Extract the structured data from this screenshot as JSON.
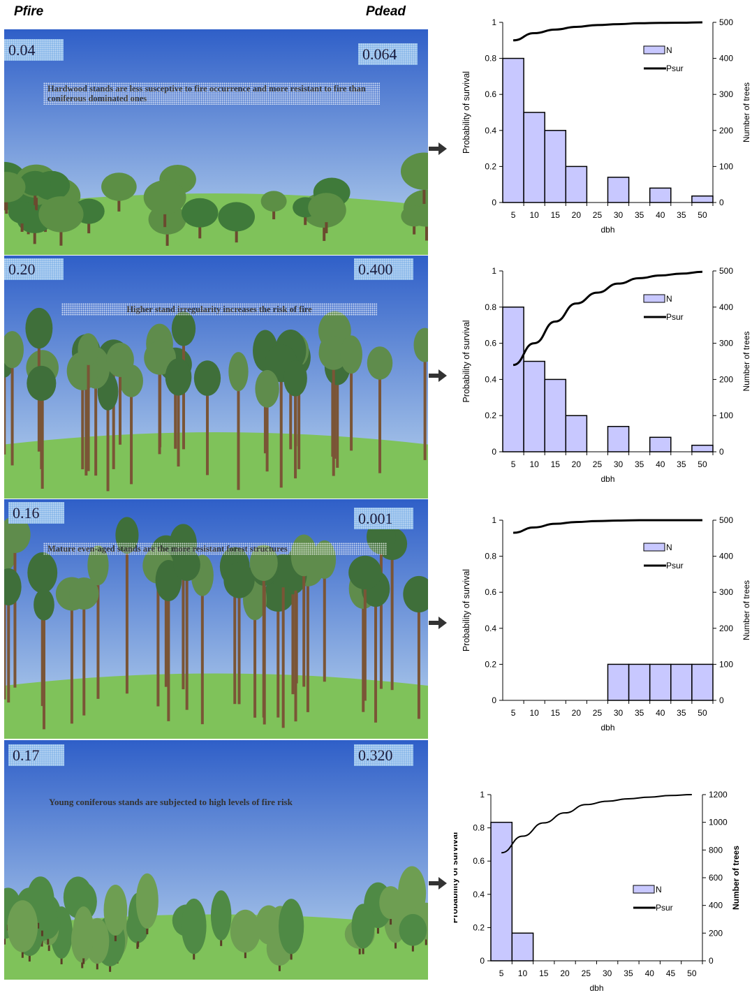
{
  "header": {
    "pfire_label": "Pfire",
    "pdead_label": "Pdead"
  },
  "colors": {
    "bar_fill": "#c8c8ff",
    "bar_stroke": "#000000",
    "sky_top": "#2f5fc8",
    "sky_bottom": "#bcd6ef",
    "grass": "#7fc25a"
  },
  "scenes": [
    {
      "pfire": "0.04",
      "pdead": "0.064",
      "note": "Hardwood stands are less susceptive to fire occurrence and more resistant to fire than coniferous dominated ones",
      "forest": "hardwood"
    },
    {
      "pfire": "0.20",
      "pdead": "0.400",
      "note": "Higher stand irregularity increases the risk of fire",
      "forest": "irregular-pine"
    },
    {
      "pfire": "0.16",
      "pdead": "0.001",
      "note": "Mature even-aged stands are the  more resistant forest structures",
      "forest": "mature-pine"
    },
    {
      "pfire": "0.17",
      "pdead": "0.320",
      "note": "Young coniferous stands are subjected to high levels of fire risk",
      "forest": "young-conifer"
    }
  ],
  "chart_data": [
    {
      "type": "bar",
      "categories": [
        "5",
        "10",
        "15",
        "20",
        "25",
        "30",
        "35",
        "40",
        "35",
        "50"
      ],
      "series": [
        {
          "name": "N",
          "type": "bar",
          "axis": "right",
          "values": [
            400,
            250,
            200,
            100,
            0,
            70,
            0,
            40,
            0,
            18
          ]
        },
        {
          "name": "Psur",
          "type": "line",
          "axis": "left",
          "values": [
            0.9,
            0.94,
            0.96,
            0.975,
            0.985,
            0.99,
            0.995,
            0.997,
            0.998,
            1.0
          ]
        }
      ],
      "xlabel": "dbh",
      "ylabel": "Probability of survival",
      "y2label": "Number of trees",
      "ylim": [
        0,
        1
      ],
      "y2lim": [
        0,
        500
      ],
      "yticks": [
        "0",
        "0.2",
        "0.4",
        "0.6",
        "0.8",
        "1"
      ],
      "y2ticks": [
        "0",
        "100",
        "200",
        "300",
        "400",
        "500"
      ],
      "legend": {
        "placement": "right",
        "entries": [
          "N",
          "Psur"
        ]
      },
      "grid": false
    },
    {
      "type": "bar",
      "categories": [
        "5",
        "10",
        "15",
        "20",
        "25",
        "30",
        "35",
        "40",
        "35",
        "50"
      ],
      "series": [
        {
          "name": "N",
          "type": "bar",
          "axis": "right",
          "values": [
            400,
            250,
            200,
            100,
            0,
            70,
            0,
            40,
            0,
            18
          ]
        },
        {
          "name": "Psur",
          "type": "line",
          "axis": "left",
          "values": [
            0.48,
            0.6,
            0.72,
            0.82,
            0.88,
            0.93,
            0.96,
            0.975,
            0.985,
            0.995
          ]
        }
      ],
      "xlabel": "dbh",
      "ylabel": "Probability of survival",
      "y2label": "Number of trees",
      "ylim": [
        0,
        1
      ],
      "y2lim": [
        0,
        500
      ],
      "yticks": [
        "0",
        "0.2",
        "0.4",
        "0.6",
        "0.8",
        "1"
      ],
      "y2ticks": [
        "0",
        "100",
        "200",
        "300",
        "400",
        "500"
      ],
      "legend": {
        "placement": "right",
        "entries": [
          "N",
          "Psur"
        ]
      },
      "grid": false
    },
    {
      "type": "bar",
      "categories": [
        "5",
        "10",
        "15",
        "20",
        "25",
        "30",
        "35",
        "40",
        "35",
        "50"
      ],
      "series": [
        {
          "name": "N",
          "type": "bar",
          "axis": "right",
          "values": [
            0,
            0,
            0,
            0,
            0,
            100,
            100,
            100,
            100,
            100
          ]
        },
        {
          "name": "Psur",
          "type": "line",
          "axis": "left",
          "values": [
            0.93,
            0.96,
            0.98,
            0.99,
            0.995,
            0.998,
            1.0,
            1.0,
            1.0,
            1.0
          ]
        }
      ],
      "xlabel": "dbh",
      "ylabel": "Probability of survival",
      "y2label": "Number of trees",
      "ylim": [
        0,
        1
      ],
      "y2lim": [
        0,
        500
      ],
      "yticks": [
        "0",
        "0.2",
        "0.4",
        "0.6",
        "0.8",
        "1"
      ],
      "y2ticks": [
        "0",
        "100",
        "200",
        "300",
        "400",
        "500"
      ],
      "legend": {
        "placement": "right",
        "entries": [
          "N",
          "Psur"
        ]
      },
      "grid": false
    },
    {
      "type": "bar",
      "categories": [
        "5",
        "10",
        "15",
        "20",
        "25",
        "30",
        "35",
        "40",
        "45",
        "50"
      ],
      "series": [
        {
          "name": "N",
          "type": "bar",
          "axis": "right",
          "values": [
            1000,
            200,
            0,
            0,
            0,
            0,
            0,
            0,
            0,
            0
          ]
        },
        {
          "name": "Psur",
          "type": "line",
          "axis": "left",
          "values": [
            0.65,
            0.75,
            0.83,
            0.89,
            0.94,
            0.96,
            0.975,
            0.985,
            0.995,
            1.0
          ]
        }
      ],
      "xlabel": "dbh",
      "ylabel": "Probability of survival",
      "y2label": "Number of trees",
      "ylim": [
        0,
        1
      ],
      "y2lim": [
        0,
        1200
      ],
      "yticks": [
        "0",
        "0.2",
        "0.4",
        "0.6",
        "0.8",
        "1"
      ],
      "y2ticks": [
        "0",
        "200",
        "400",
        "600",
        "800",
        "1000",
        "1200"
      ],
      "legend": {
        "placement": "right",
        "entries": [
          "N",
          "Psur"
        ]
      },
      "grid": false
    }
  ]
}
